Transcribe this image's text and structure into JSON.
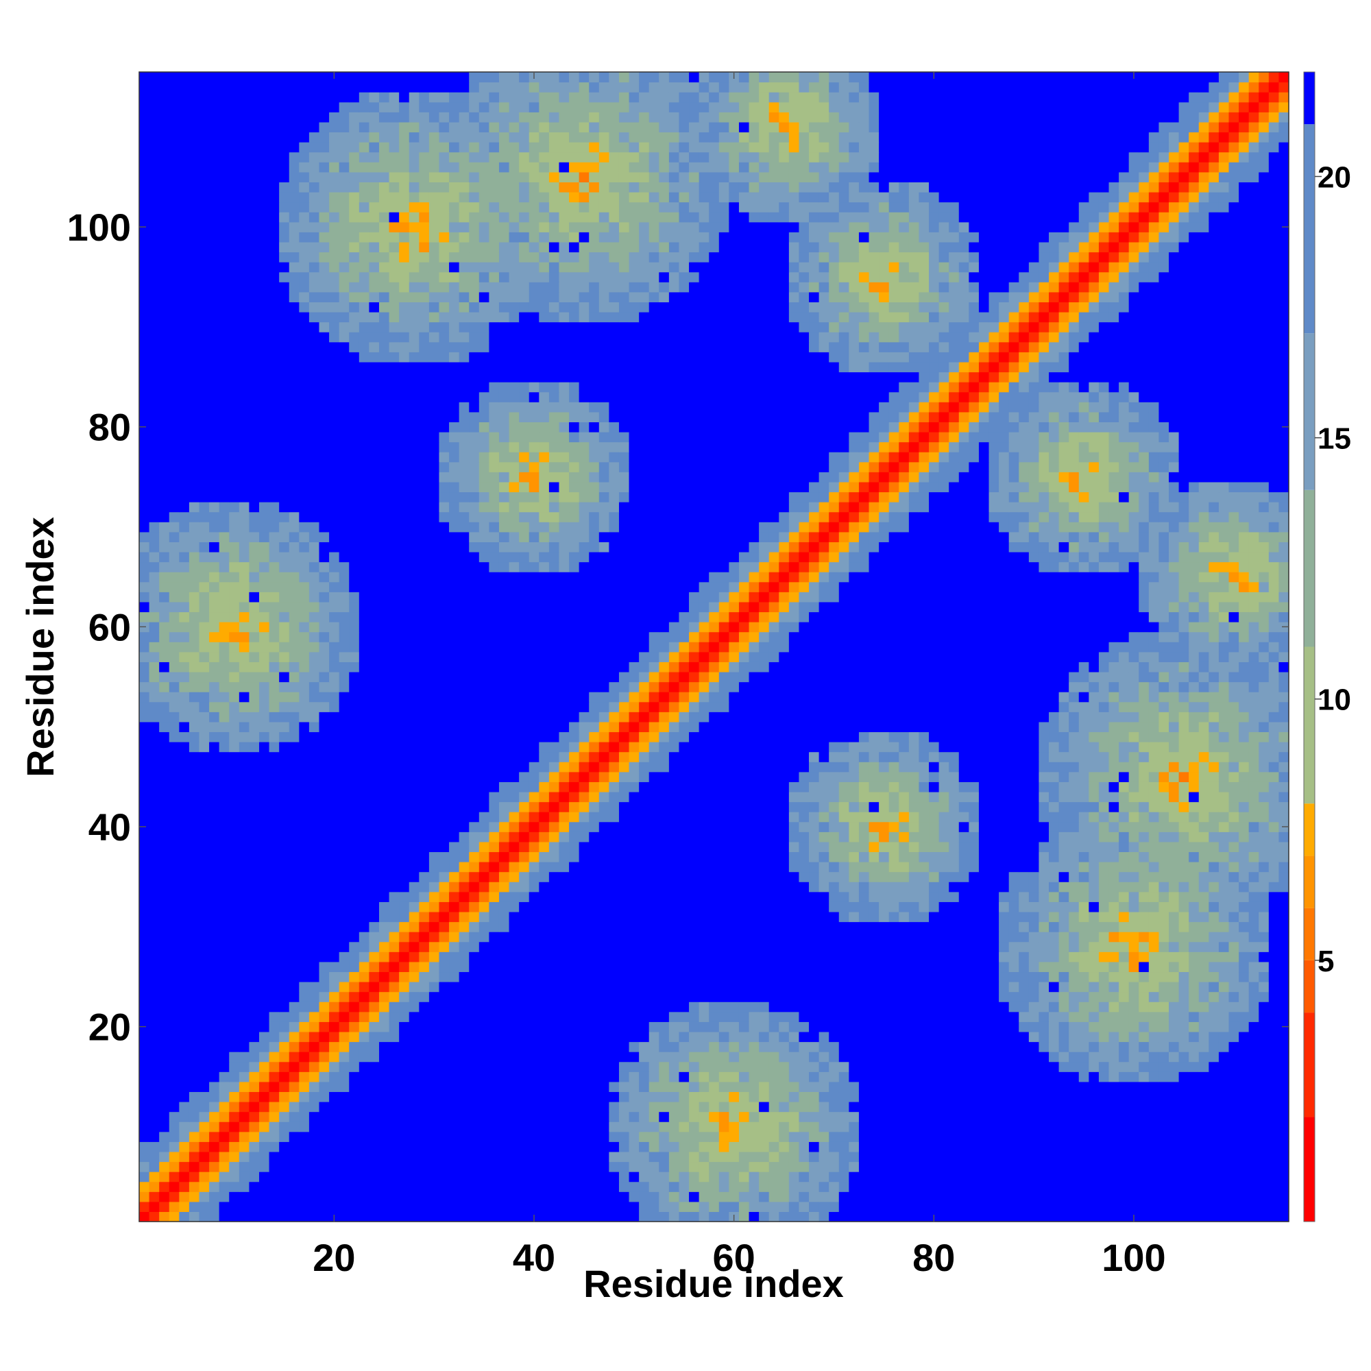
{
  "chart_data": {
    "type": "heatmap",
    "title": "",
    "xlabel": "Residue index",
    "ylabel": "Residue index",
    "x_range": [
      1,
      115
    ],
    "y_range": [
      1,
      115
    ],
    "x_ticks": [
      20,
      40,
      60,
      80,
      100
    ],
    "y_ticks": [
      20,
      40,
      60,
      80,
      100
    ],
    "n_residues": 115,
    "colorbar": {
      "range": [
        0,
        22
      ],
      "ticks": [
        5,
        10,
        15,
        20
      ],
      "levels": [
        {
          "max": 2,
          "color": "#ff0000"
        },
        {
          "max": 4,
          "color": "#ff2a00"
        },
        {
          "max": 5,
          "color": "#ff5a00"
        },
        {
          "max": 6,
          "color": "#ff7800"
        },
        {
          "max": 7,
          "color": "#ff9400"
        },
        {
          "max": 8,
          "color": "#ffab00"
        },
        {
          "max": 11,
          "color": "#a6bf86"
        },
        {
          "max": 14,
          "color": "#90b099"
        },
        {
          "max": 17,
          "color": "#7a9ec0"
        },
        {
          "max": 21,
          "color": "#5f8ac8"
        },
        {
          "max": 99,
          "color": "#0000ff"
        }
      ]
    },
    "contact_map_description_values": {
      "diagonal_band_distance": 3.8,
      "cutoff": 21
    },
    "clusters": [
      {
        "cx": 10,
        "cy": 60,
        "r": 13
      },
      {
        "cx": 28,
        "cy": 100,
        "r": 14
      },
      {
        "cx": 45,
        "cy": 105,
        "r": 15
      },
      {
        "cx": 65,
        "cy": 110,
        "r": 10
      },
      {
        "cx": 75,
        "cy": 95,
        "r": 10
      },
      {
        "cx": 40,
        "cy": 75,
        "r": 10
      },
      {
        "cx": 60,
        "cy": 10,
        "r": 13
      },
      {
        "cx": 100,
        "cy": 28,
        "r": 14
      },
      {
        "cx": 105,
        "cy": 45,
        "r": 15
      },
      {
        "cx": 110,
        "cy": 65,
        "r": 10
      },
      {
        "cx": 95,
        "cy": 75,
        "r": 10
      },
      {
        "cx": 75,
        "cy": 40,
        "r": 10
      }
    ]
  }
}
